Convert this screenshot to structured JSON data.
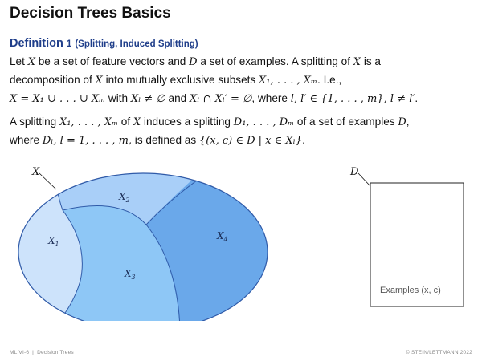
{
  "slide": {
    "title": "Decision Trees Basics"
  },
  "definition": {
    "label": "Definition",
    "number": "1",
    "subtitle": "(Splitting, Induced Splitting)"
  },
  "para1": {
    "line1_a": "Let ",
    "X": "X",
    "line1_b": " be a set of feature vectors and ",
    "D": "D",
    "line1_c": " a set of examples. A splitting of ",
    "line1_d": " is a",
    "line2_a": "decomposition of ",
    "line2_b": " into mutually exclusive subsets ",
    "subsets": "X₁, . . . , Xₘ",
    "line2_c": ". I.e.,",
    "eq_union": "X = X₁ ∪ . . . ∪ Xₘ",
    "line3_a": " with ",
    "eq_nonempty": "Xₗ ≠ ∅",
    "line3_b": " and ",
    "eq_disjoint": "Xₗ ∩ Xₗ′ = ∅",
    "line3_c": ", where ",
    "eq_index": "l, l′ ∈ {1, . . . , m}, l ≠ l′",
    "line3_d": "."
  },
  "para2": {
    "line1_a": "A splitting ",
    "subsets": "X₁, . . . , Xₘ",
    "line1_b": " of ",
    "X": "X",
    "line1_c": " induces a splitting ",
    "dsubsets": "D₁, . . . , Dₘ",
    "line1_d": " of a set of examples ",
    "D": "D",
    "line1_e": ",",
    "line2_a": "where ",
    "eq_dl": "Dₗ, l = 1, . . . , m,",
    "line2_b": " is defined as ",
    "eq_set": "{(x, c) ∈ D | x ∈ Xₗ}",
    "line2_c": "."
  },
  "diagram": {
    "label_X": "X",
    "label_D": "D",
    "regions": [
      "X1",
      "X2",
      "X3",
      "X4"
    ],
    "region_main": "X",
    "region_subs": [
      "1",
      "2",
      "3",
      "4"
    ],
    "examples_label": "Examples (x, c)",
    "colors": {
      "x1": "#cde3fb",
      "x2": "#a9cff8",
      "x3": "#8ec7f6",
      "x4": "#6aa8ea",
      "stroke": "#2f5aa8"
    }
  },
  "footer": {
    "left_a": "ML:VI-6",
    "left_b": "Decision Trees",
    "right": "© STEIN/LETTMANN 2022"
  }
}
